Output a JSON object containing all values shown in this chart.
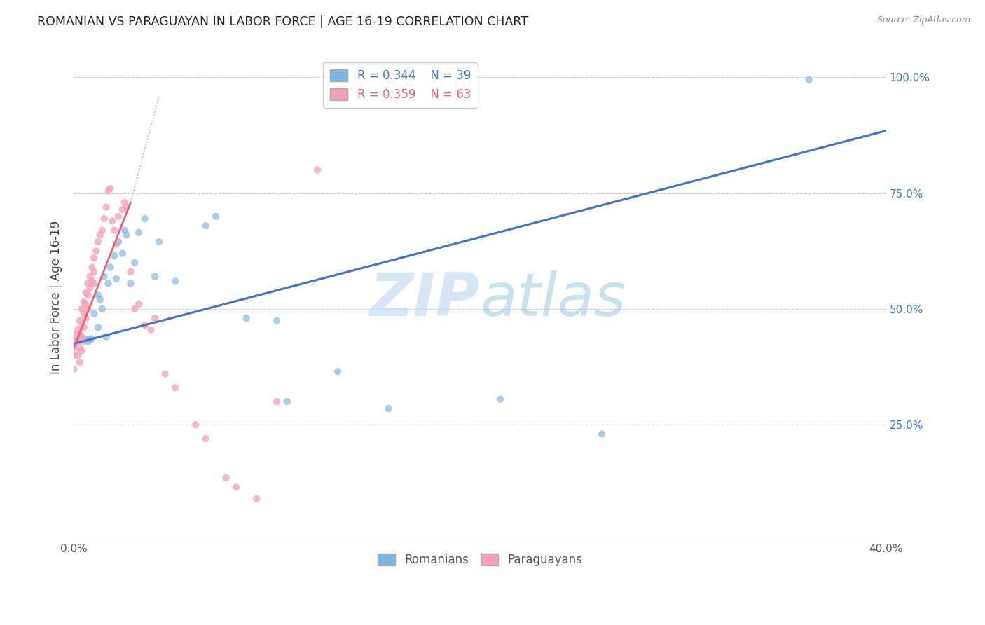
{
  "title": "ROMANIAN VS PARAGUAYAN IN LABOR FORCE | AGE 16-19 CORRELATION CHART",
  "source": "Source: ZipAtlas.com",
  "ylabel": "In Labor Force | Age 16-19",
  "xlim": [
    0.0,
    0.4
  ],
  "ylim": [
    0.0,
    1.05
  ],
  "xticks": [
    0.0,
    0.08,
    0.16,
    0.24,
    0.32,
    0.4
  ],
  "xticklabels": [
    "0.0%",
    "",
    "",
    "",
    "",
    "40.0%"
  ],
  "yticks_right": [
    0.25,
    0.5,
    0.75,
    1.0
  ],
  "yticklabels_right": [
    "25.0%",
    "50.0%",
    "75.0%",
    "100.0%"
  ],
  "grid_color": "#cccccc",
  "background_color": "#ffffff",
  "blue_dot_color": "#7fb3e0",
  "pink_dot_color": "#f4a0b8",
  "blue_line_color": "#4472c4",
  "pink_line_color": "#e8607a",
  "legend_R_blue": "0.344",
  "legend_N_blue": "39",
  "legend_R_pink": "0.359",
  "legend_N_pink": "63",
  "watermark_zip": "ZIP",
  "watermark_atlas": "atlas",
  "blue_line_x0": 0.0,
  "blue_line_y0": 0.425,
  "blue_line_x1": 0.4,
  "blue_line_y1": 0.885,
  "pink_line_x0": 0.0,
  "pink_line_y0": 0.415,
  "pink_line_x1": 0.028,
  "pink_line_y1": 0.73,
  "romanians_x": [
    0.002,
    0.006,
    0.008,
    0.009,
    0.012,
    0.012,
    0.013,
    0.015,
    0.016,
    0.017,
    0.018,
    0.02,
    0.021,
    0.022,
    0.024,
    0.025,
    0.026,
    0.028,
    0.03,
    0.032,
    0.035,
    0.04,
    0.042,
    0.05,
    0.065,
    0.07,
    0.085,
    0.1,
    0.105,
    0.13,
    0.155,
    0.21,
    0.26,
    0.362,
    0.001,
    0.003,
    0.007,
    0.01,
    0.014
  ],
  "romanians_y": [
    0.435,
    0.435,
    0.435,
    0.435,
    0.53,
    0.46,
    0.52,
    0.57,
    0.44,
    0.555,
    0.59,
    0.615,
    0.565,
    0.645,
    0.62,
    0.67,
    0.66,
    0.555,
    0.6,
    0.665,
    0.695,
    0.57,
    0.645,
    0.56,
    0.68,
    0.7,
    0.48,
    0.475,
    0.3,
    0.365,
    0.285,
    0.305,
    0.23,
    0.995,
    0.43,
    0.43,
    0.43,
    0.49,
    0.5
  ],
  "paraguayans_x": [
    0.0,
    0.0,
    0.0,
    0.001,
    0.001,
    0.002,
    0.002,
    0.002,
    0.003,
    0.003,
    0.003,
    0.003,
    0.004,
    0.004,
    0.004,
    0.004,
    0.005,
    0.005,
    0.005,
    0.005,
    0.006,
    0.006,
    0.006,
    0.007,
    0.007,
    0.007,
    0.008,
    0.008,
    0.009,
    0.009,
    0.01,
    0.01,
    0.01,
    0.011,
    0.012,
    0.013,
    0.014,
    0.015,
    0.016,
    0.017,
    0.018,
    0.019,
    0.02,
    0.021,
    0.022,
    0.024,
    0.025,
    0.026,
    0.028,
    0.03,
    0.032,
    0.035,
    0.038,
    0.04,
    0.045,
    0.05,
    0.06,
    0.065,
    0.075,
    0.08,
    0.09,
    0.1,
    0.12
  ],
  "paraguayans_y": [
    0.43,
    0.4,
    0.37,
    0.445,
    0.415,
    0.455,
    0.43,
    0.4,
    0.475,
    0.445,
    0.415,
    0.385,
    0.5,
    0.465,
    0.44,
    0.41,
    0.515,
    0.49,
    0.46,
    0.43,
    0.535,
    0.51,
    0.48,
    0.555,
    0.53,
    0.5,
    0.57,
    0.545,
    0.59,
    0.56,
    0.61,
    0.58,
    0.555,
    0.625,
    0.645,
    0.66,
    0.67,
    0.695,
    0.72,
    0.755,
    0.76,
    0.69,
    0.67,
    0.64,
    0.7,
    0.715,
    0.73,
    0.72,
    0.58,
    0.5,
    0.51,
    0.465,
    0.455,
    0.48,
    0.36,
    0.33,
    0.25,
    0.22,
    0.135,
    0.115,
    0.09,
    0.3,
    0.8
  ]
}
